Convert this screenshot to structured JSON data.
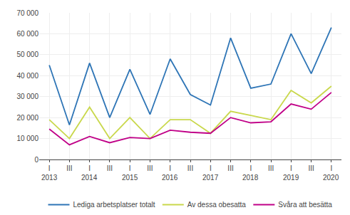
{
  "chart_data": {
    "type": "line",
    "categories": [
      "I",
      "III",
      "I",
      "III",
      "I",
      "III",
      "I",
      "III",
      "I",
      "III",
      "I",
      "III",
      "I",
      "III",
      "I"
    ],
    "series": [
      {
        "name": "Lediga arbetsplatser totalt",
        "color": "#2E75B6",
        "values": [
          45000,
          16500,
          46000,
          20000,
          43000,
          21500,
          48000,
          31000,
          26000,
          58000,
          34000,
          36000,
          60000,
          41000,
          63000
        ]
      },
      {
        "name": "Av dessa obesatta",
        "color": "#C9D84C",
        "values": [
          19000,
          10000,
          25000,
          10000,
          20000,
          10000,
          19000,
          19000,
          12500,
          23000,
          21000,
          19000,
          33000,
          27000,
          35000
        ]
      },
      {
        "name": "Svåra att besätta",
        "color": "#C00087",
        "values": [
          14500,
          7000,
          11000,
          8000,
          10500,
          10000,
          14000,
          13000,
          12500,
          20000,
          17500,
          18000,
          26500,
          24000,
          32000
        ]
      }
    ],
    "annotations": [
      {
        "text": "2013",
        "x": 0
      },
      {
        "text": "2014",
        "x": 2
      },
      {
        "text": "2015",
        "x": 4
      },
      {
        "text": "2016",
        "x": 6
      },
      {
        "text": "2017",
        "x": 8
      },
      {
        "text": "2018",
        "x": 10
      },
      {
        "text": "2019",
        "x": 12
      },
      {
        "text": "2020",
        "x": 14
      }
    ],
    "ylim": [
      0,
      70000
    ],
    "yticks": [
      0,
      {
        "value": 10000,
        "label": "10 000"
      },
      {
        "value": 20000,
        "label": "20 000"
      },
      {
        "value": 30000,
        "label": "30 000"
      },
      {
        "value": 40000,
        "label": "40 000"
      },
      {
        "value": 50000,
        "label": "50 000"
      },
      {
        "value": 60000,
        "label": "60 000"
      },
      {
        "value": 70000,
        "label": "70 000"
      }
    ],
    "grid": true,
    "legend": "bottom"
  }
}
